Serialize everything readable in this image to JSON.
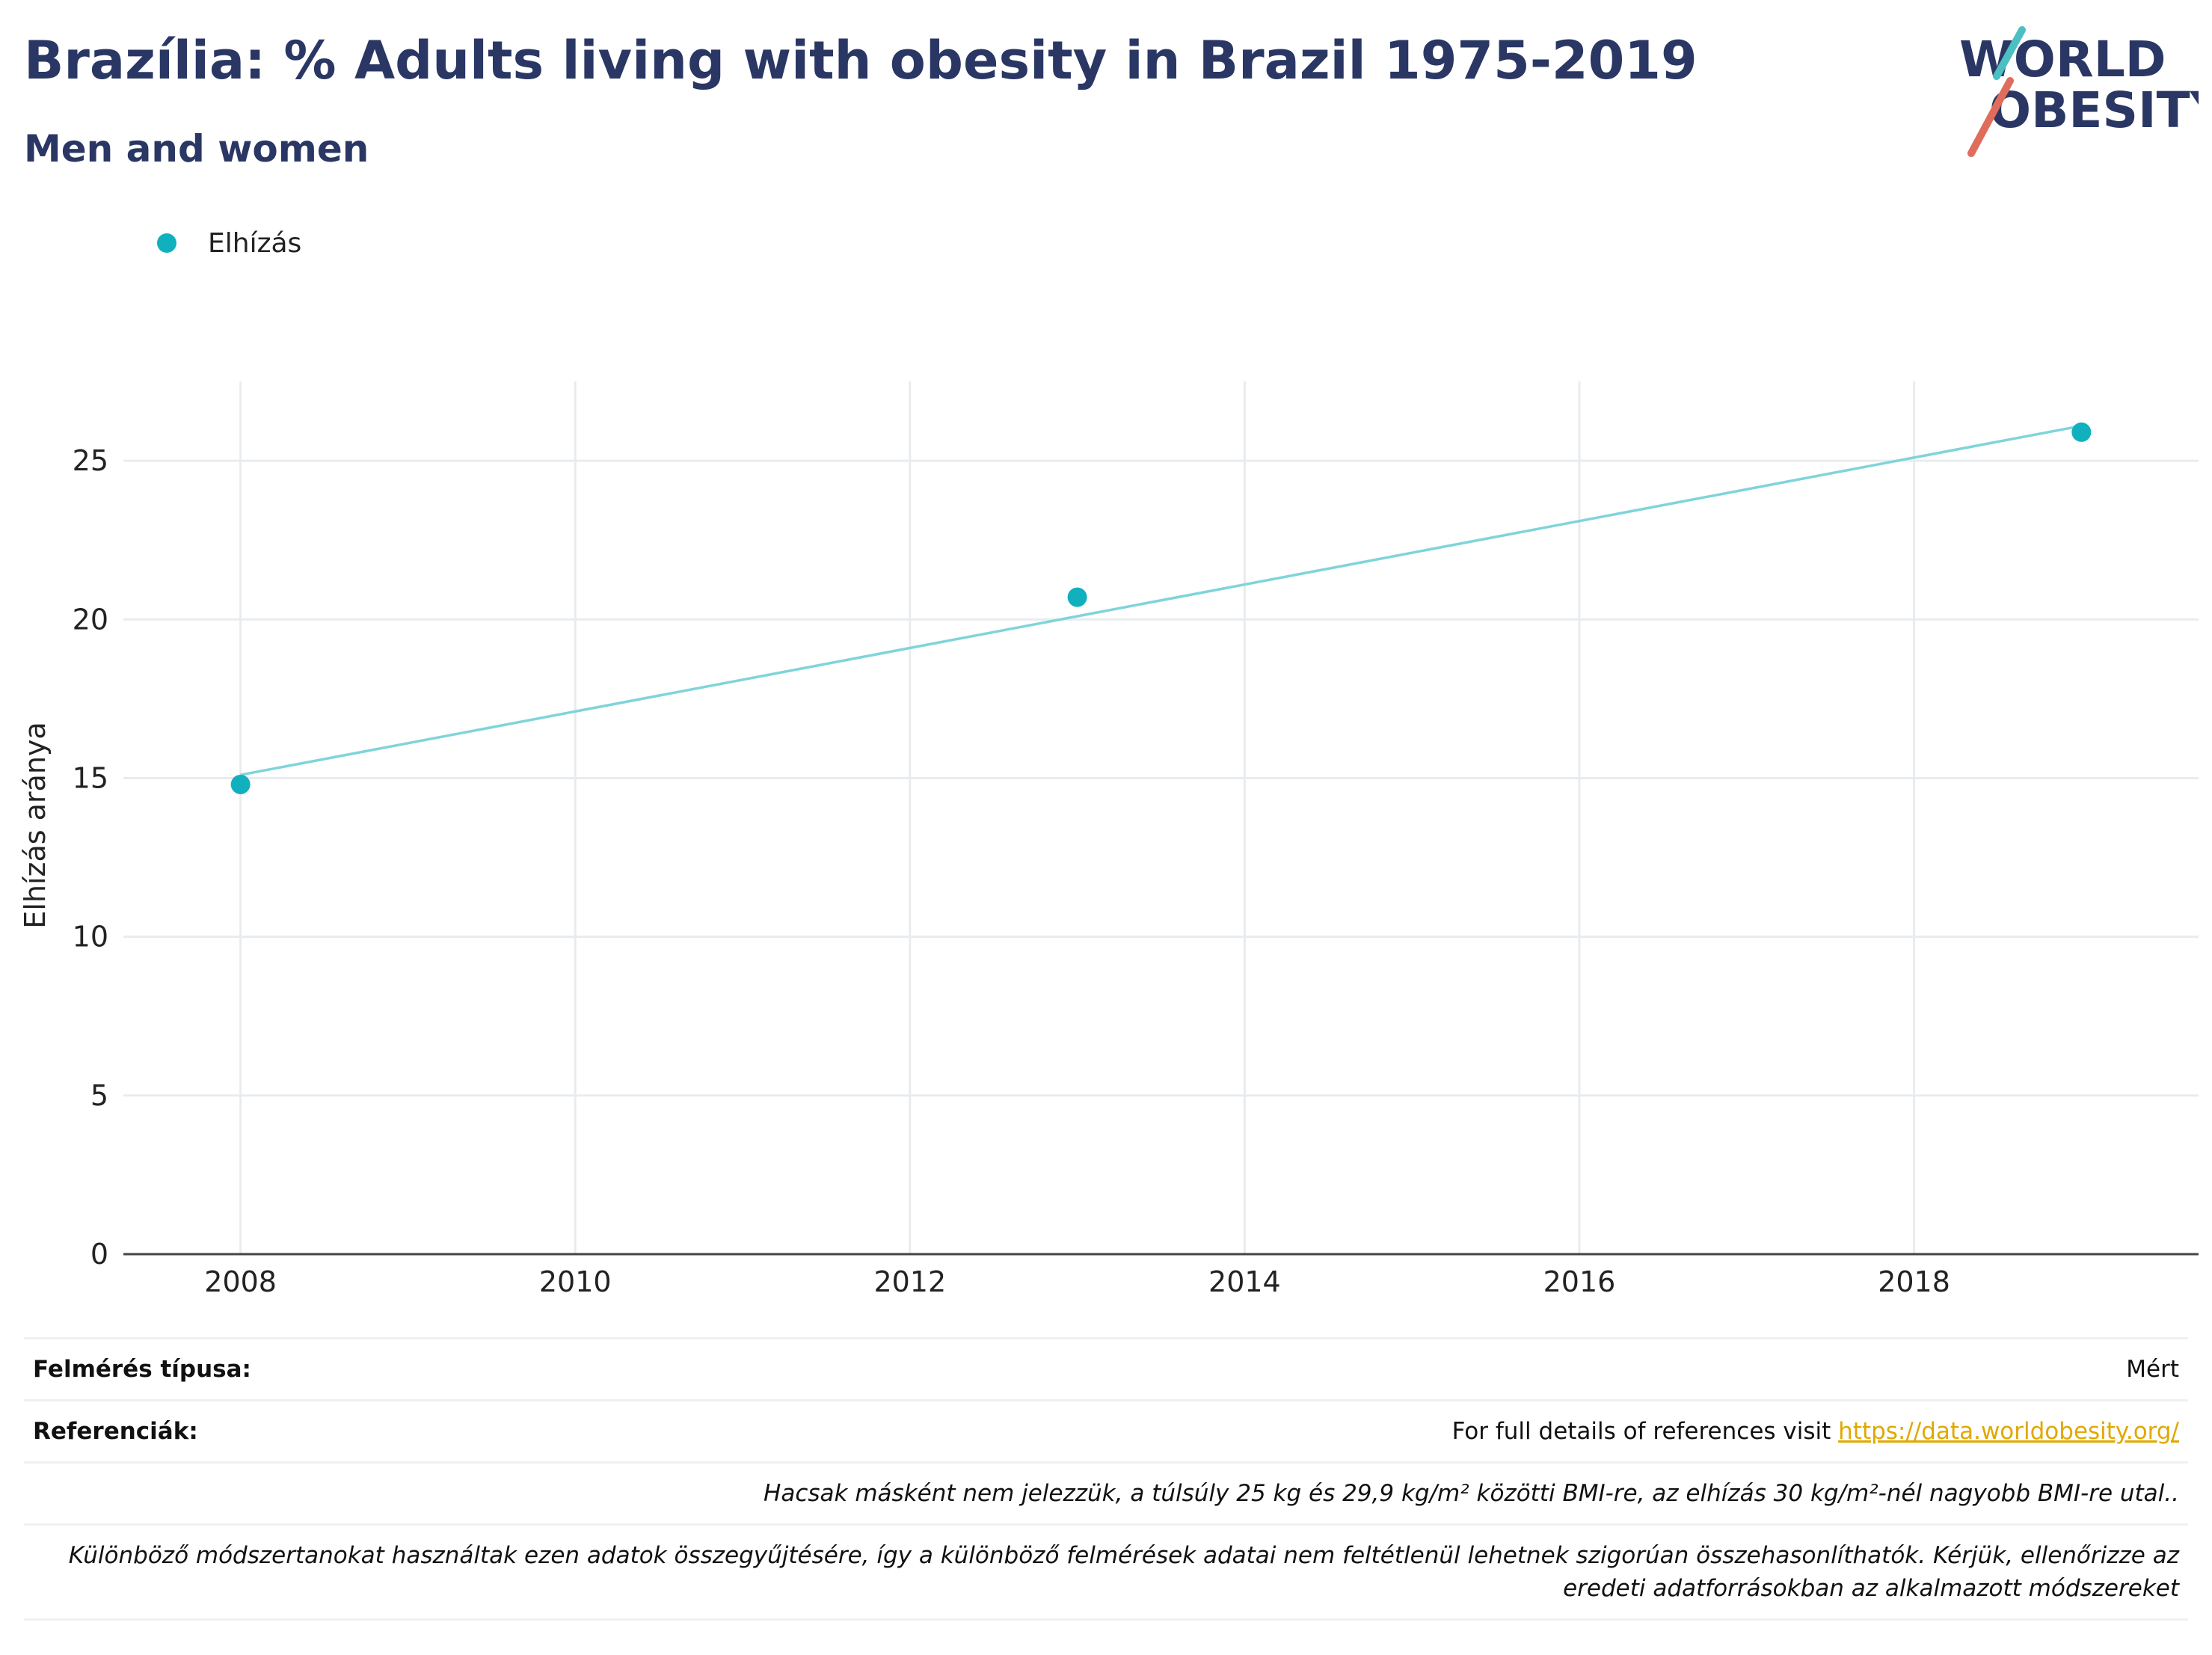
{
  "header": {
    "title": "Brazília: % Adults living with obesity in Brazil 1975-2019",
    "subtitle": "Men and women"
  },
  "logo": {
    "line1": "WORLD",
    "line2": "OBESITY"
  },
  "legend": {
    "label": "Elhízás"
  },
  "colors": {
    "primary": "#10b0bf",
    "trend": "#7fd4da",
    "title": "#2a3764",
    "link": "#e0a800",
    "logo_teal": "#4bbfc2",
    "logo_red": "#e06c5c"
  },
  "chart_data": {
    "type": "scatter",
    "ylabel": "Elhízás aránya",
    "xlabel": "",
    "xlim": [
      2007.3,
      2019.7
    ],
    "ylim": [
      0,
      27.5
    ],
    "x_ticks": [
      2008,
      2010,
      2012,
      2014,
      2016,
      2018
    ],
    "y_ticks": [
      0,
      5,
      10,
      15,
      20,
      25
    ],
    "grid": true,
    "legend_position": "top-left",
    "series": [
      {
        "name": "Elhízás",
        "x": [
          2008,
          2013,
          2019
        ],
        "y": [
          14.8,
          20.7,
          25.9
        ]
      }
    ],
    "trendline": {
      "x": [
        2008,
        2019
      ],
      "y": [
        15.1,
        26.1
      ]
    }
  },
  "info": {
    "survey_label": "Felmérés típusa:",
    "survey_value": "Mért",
    "ref_label": "Referenciák:",
    "ref_text": "For full details of references visit ",
    "ref_link": "https://data.worldobesity.org/",
    "note1": "Hacsak másként nem jelezzük, a túlsúly 25 kg és 29,9 kg/m² közötti BMI-re, az elhízás 30 kg/m²-nél nagyobb BMI-re utal..",
    "note2_line1": "Különböző módszertanokat használtak ezen adatok összegyűjtésére, így a különböző felmérések adatai nem feltétlenül lehetnek szigorúan összehasonlíthatók. Kérjük, ellenőrizze az",
    "note2_line2": "eredeti adatforrásokban az alkalmazott módszereket"
  }
}
